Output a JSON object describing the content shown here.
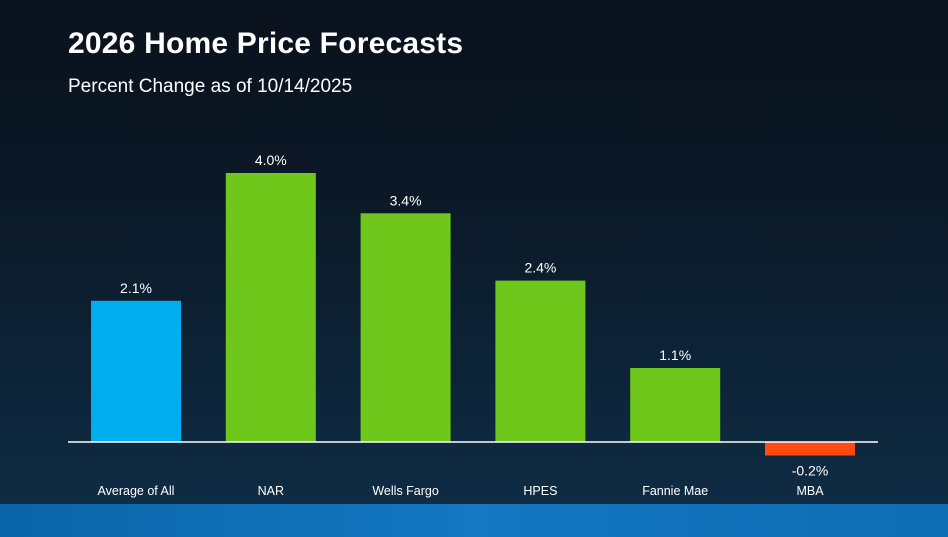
{
  "header": {
    "title": "2026 Home Price Forecasts",
    "subtitle": "Percent Change as of 10/14/2025"
  },
  "colors": {
    "average": "#00aeef",
    "positive": "#6ec71a",
    "negative": "#ff4a13",
    "axis": "#ffffff"
  },
  "chart_data": {
    "type": "bar",
    "title": "2026 Home Price Forecasts",
    "subtitle": "Percent Change as of 10/14/2025",
    "xlabel": "",
    "ylabel": "",
    "grid": false,
    "legend": "none",
    "ylim": [
      -0.2,
      4.0
    ],
    "categories": [
      "Average of All",
      "NAR",
      "Wells Fargo",
      "HPES",
      "Fannie Mae",
      "MBA"
    ],
    "values": [
      2.1,
      4.0,
      3.4,
      2.4,
      1.1,
      -0.2
    ],
    "value_labels": [
      "2.1%",
      "4.0%",
      "3.4%",
      "2.4%",
      "1.1%",
      "-0.2%"
    ],
    "bar_roles": [
      "average",
      "positive",
      "positive",
      "positive",
      "positive",
      "negative"
    ]
  }
}
